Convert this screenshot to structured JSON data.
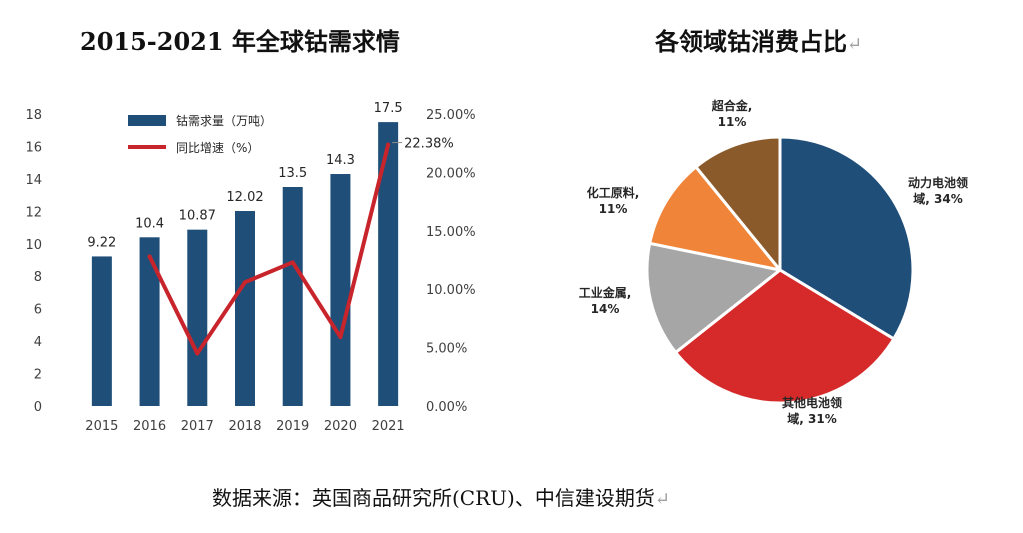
{
  "titles": {
    "bar_chart": "2015-2021 年全球钴需求情",
    "pie_chart": "各领域钴消费占比",
    "return_mark": "↵"
  },
  "source_note": "数据来源：英国商品研究所(CRU)、中信建设期货",
  "chart_data": [
    {
      "type": "bar",
      "categories": [
        "2015",
        "2016",
        "2017",
        "2018",
        "2019",
        "2020",
        "2021"
      ],
      "series": [
        {
          "name": "钴需求量（万吨）",
          "type": "bar",
          "axis": "left",
          "color": "#1f4e79",
          "values": [
            9.22,
            10.4,
            10.87,
            12.02,
            13.5,
            14.3,
            17.5
          ],
          "data_labels": [
            "9.22",
            "10.4",
            "10.87",
            "12.02",
            "13.5",
            "14.3",
            "17.5"
          ]
        },
        {
          "name": "同比增速（%）",
          "type": "line",
          "axis": "right",
          "color": "#c8242b",
          "x": [
            "2016",
            "2017",
            "2018",
            "2019",
            "2020",
            "2021"
          ],
          "values": [
            12.8,
            4.5,
            10.6,
            12.3,
            5.9,
            22.38
          ],
          "data_labels": [
            "",
            "",
            "",
            "",
            "",
            "22.38%"
          ]
        }
      ],
      "y_left": {
        "range": [
          0,
          18
        ],
        "ticks": [
          "0",
          "2",
          "4",
          "6",
          "8",
          "10",
          "12",
          "14",
          "16",
          "18"
        ]
      },
      "y_right": {
        "range": [
          0,
          25
        ],
        "ticks": [
          "0.00%",
          "5.00%",
          "10.00%",
          "15.00%",
          "20.00%",
          "25.00%"
        ]
      },
      "legend_position": "top-left",
      "grid": false
    },
    {
      "type": "pie",
      "slices": [
        {
          "label": [
            "动力电池领",
            "域, 34%"
          ],
          "value": 34,
          "color": "#1f4e79"
        },
        {
          "label": [
            "其他电池领",
            "域, 31%"
          ],
          "value": 31,
          "color": "#d62a2a"
        },
        {
          "label": [
            "工业金属,",
            "14%"
          ],
          "value": 14,
          "color": "#a6a6a6"
        },
        {
          "label": [
            "化工原料,",
            "11%"
          ],
          "value": 11,
          "color": "#f0853a"
        },
        {
          "label": [
            "超合金,",
            "11%"
          ],
          "value": 11,
          "color": "#8b5a2b"
        }
      ],
      "start": "12 o'clock, clockwise"
    }
  ]
}
